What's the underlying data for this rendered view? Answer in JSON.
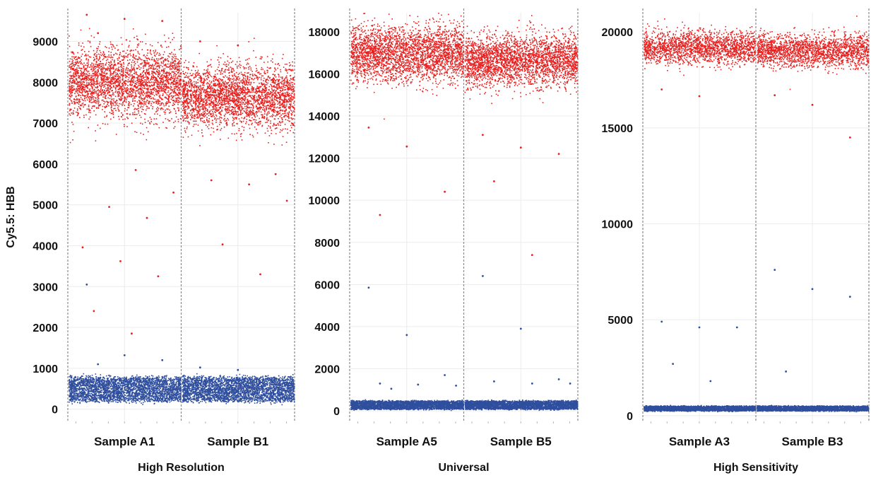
{
  "chart_data": [
    {
      "type": "scatter",
      "title": "High Resolution",
      "ylabel": "Cy5.5: HBB",
      "xlabel": "",
      "ylim": [
        -300,
        9700
      ],
      "yticks": [
        0,
        1000,
        2000,
        3000,
        4000,
        5000,
        6000,
        7000,
        8000,
        9000
      ],
      "categories": [
        "Sample A1",
        "Sample B1"
      ],
      "grid": true,
      "series": [
        {
          "color": "#e8201f",
          "clusters": [
            {
              "category": "Sample A1",
              "center": 8000,
              "spread": 420,
              "density": 2800
            },
            {
              "category": "Sample B1",
              "center": 7650,
              "spread": 380,
              "density": 2800
            }
          ],
          "outliers": [
            {
              "category": "Sample A1",
              "values": [
                9650,
                9550,
                9500,
                9200,
                5850,
                5300,
                4950,
                4680,
                3960,
                3620,
                3250,
                2400,
                1850
              ]
            },
            {
              "category": "Sample B1",
              "values": [
                9000,
                8900,
                5750,
                5600,
                5500,
                5100,
                4030,
                3300
              ]
            }
          ]
        },
        {
          "color": "#2f4e9e",
          "clusters": [
            {
              "category": "Sample A1",
              "center": 500,
              "spread": 180,
              "density": 3200
            },
            {
              "category": "Sample B1",
              "center": 500,
              "spread": 180,
              "density": 3200
            }
          ],
          "outliers": [
            {
              "category": "Sample A1",
              "values": [
                3050,
                1320,
                1200,
                1100
              ]
            },
            {
              "category": "Sample B1",
              "values": [
                1020,
                960
              ]
            }
          ]
        }
      ]
    },
    {
      "type": "scatter",
      "title": "Universal",
      "ylabel": "",
      "xlabel": "",
      "ylim": [
        -500,
        18900
      ],
      "yticks": [
        0,
        2000,
        4000,
        6000,
        8000,
        10000,
        12000,
        14000,
        16000,
        18000
      ],
      "categories": [
        "Sample A5",
        "Sample B5"
      ],
      "grid": true,
      "series": [
        {
          "color": "#e8201f",
          "clusters": [
            {
              "category": "Sample A5",
              "center": 17000,
              "spread": 650,
              "density": 2800
            },
            {
              "category": "Sample B5",
              "center": 16650,
              "spread": 600,
              "density": 2800
            }
          ],
          "outliers": [
            {
              "category": "Sample A5",
              "values": [
                13450,
                12550,
                10400,
                9300
              ]
            },
            {
              "category": "Sample B5",
              "values": [
                13100,
                12500,
                12200,
                10900,
                7400
              ]
            }
          ]
        },
        {
          "color": "#2f4e9e",
          "clusters": [
            {
              "category": "Sample A5",
              "center": 300,
              "spread": 120,
              "density": 3200
            },
            {
              "category": "Sample B5",
              "center": 300,
              "spread": 120,
              "density": 3200
            }
          ],
          "outliers": [
            {
              "category": "Sample A5",
              "values": [
                5850,
                3600,
                1700,
                1300,
                1250,
                1200,
                1050
              ]
            },
            {
              "category": "Sample B5",
              "values": [
                6400,
                3900,
                1500,
                1400,
                1300,
                1300
              ]
            }
          ]
        }
      ]
    },
    {
      "type": "scatter",
      "title": "High Sensitivity",
      "ylabel": "",
      "xlabel": "",
      "ylim": [
        -300,
        21000
      ],
      "yticks": [
        0,
        5000,
        10000,
        15000,
        20000
      ],
      "categories": [
        "Sample A3",
        "Sample B3"
      ],
      "grid": true,
      "series": [
        {
          "color": "#e8201f",
          "clusters": [
            {
              "category": "Sample A3",
              "center": 19200,
              "spread": 420,
              "density": 1900
            },
            {
              "category": "Sample B3",
              "center": 19050,
              "spread": 420,
              "density": 1900
            }
          ],
          "outliers": [
            {
              "category": "Sample A3",
              "values": [
                17000,
                16650
              ]
            },
            {
              "category": "Sample B3",
              "values": [
                16700,
                16200,
                14500
              ]
            }
          ]
        },
        {
          "color": "#2f4e9e",
          "clusters": [
            {
              "category": "Sample A3",
              "center": 400,
              "spread": 80,
              "density": 2400
            },
            {
              "category": "Sample B3",
              "center": 400,
              "spread": 80,
              "density": 2400
            }
          ],
          "outliers": [
            {
              "category": "Sample A3",
              "values": [
                4900,
                4600,
                4600,
                2700,
                1800
              ]
            },
            {
              "category": "Sample B3",
              "values": [
                7600,
                6600,
                6200,
                2300
              ]
            }
          ]
        }
      ]
    }
  ]
}
